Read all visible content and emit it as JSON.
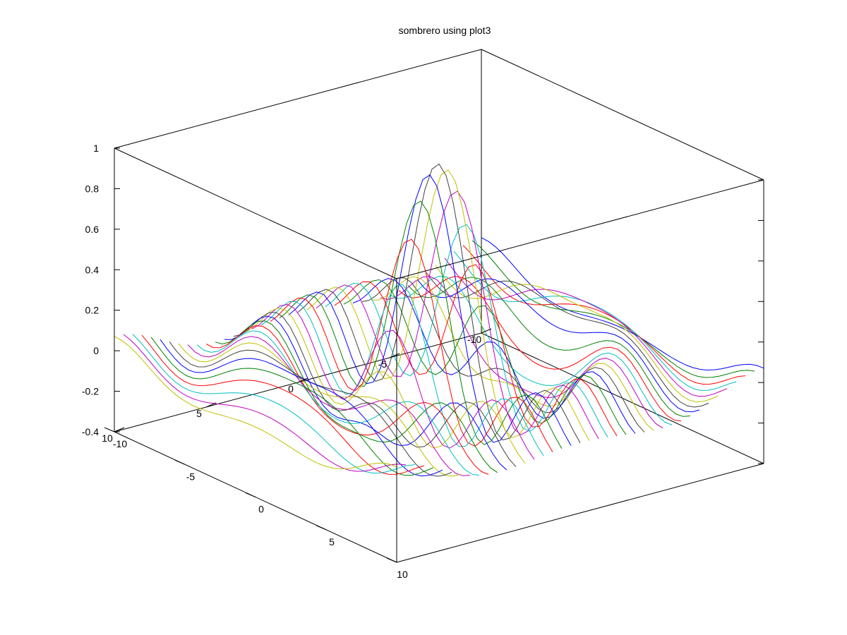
{
  "chart_data": {
    "type": "line",
    "title": "sombrero using plot3",
    "function": "sin(r)/r",
    "x_range": [
      -10,
      10
    ],
    "y_range": [
      -10,
      10
    ],
    "z_range": [
      -0.4,
      1
    ],
    "grid_n": 41,
    "z_ticks": [
      {
        "value": -0.4,
        "label": "-0.4"
      },
      {
        "value": -0.2,
        "label": "-0.2"
      },
      {
        "value": 0,
        "label": "0"
      },
      {
        "value": 0.2,
        "label": "0.2"
      },
      {
        "value": 0.4,
        "label": "0.4"
      },
      {
        "value": 0.6,
        "label": "0.6"
      },
      {
        "value": 0.8,
        "label": "0.8"
      },
      {
        "value": 1,
        "label": "1"
      }
    ],
    "x_ticks": [
      {
        "value": -10,
        "label": "-10"
      },
      {
        "value": -5,
        "label": "-5"
      },
      {
        "value": 0,
        "label": "0"
      },
      {
        "value": 5,
        "label": "5"
      },
      {
        "value": 10,
        "label": "10"
      }
    ],
    "y_ticks": [
      {
        "value": -10,
        "label": "10"
      },
      {
        "value": -5,
        "label": "5"
      },
      {
        "value": 0,
        "label": "0"
      },
      {
        "value": 5,
        "label": "-5"
      },
      {
        "value": 10,
        "label": "-10"
      }
    ],
    "series_colors": [
      "#0000ff",
      "#008000",
      "#ff0000",
      "#00bfbf",
      "#bf00bf",
      "#bfbf00",
      "#404040"
    ],
    "box": true,
    "grid": false,
    "legend": "none"
  }
}
